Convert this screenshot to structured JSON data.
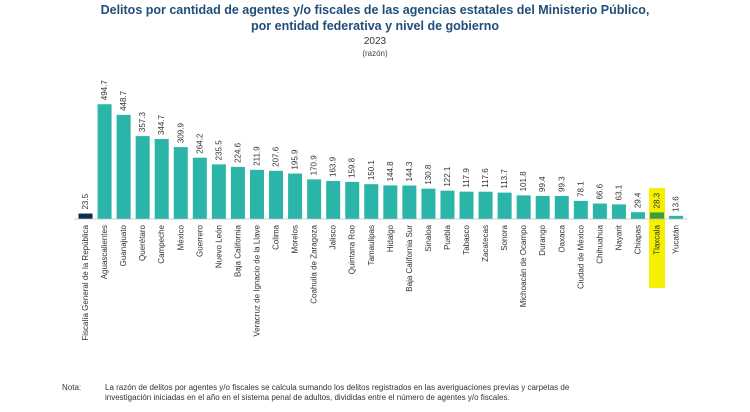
{
  "header": {
    "title_line1": "Delitos por cantidad de agentes y/o fiscales de las agencias estatales del Ministerio Público,",
    "title_line2": "por entidad federativa y nivel de gobierno",
    "year": "2023",
    "unit": "(razón)"
  },
  "colors": {
    "title": "#1f4e79",
    "bar_default": "#2bb5a8",
    "bar_federal": "#0b2d4e",
    "bar_highlight": "#3a9d3a",
    "highlight_band": "#f5ef00"
  },
  "chart_data": {
    "type": "bar",
    "title": "Delitos por cantidad de agentes y/o fiscales de las agencias estatales del Ministerio Público, por entidad federativa y nivel de gobierno",
    "subtitle": "2023 (razón)",
    "xlabel": "",
    "ylabel": "",
    "ylim": [
      0,
      500
    ],
    "grid": false,
    "categories": [
      "Fiscalía General de la República",
      "Aguascalientes",
      "Guanajuato",
      "Querétaro",
      "Campeche",
      "México",
      "Guerrero",
      "Nuevo León",
      "Baja California",
      "Veracruz de Ignacio de la Llave",
      "Colima",
      "Morelos",
      "Coahuila de Zaragoza",
      "Jalisco",
      "Quintana Roo",
      "Tamaulipas",
      "Hidalgo",
      "Baja California Sur",
      "Sinaloa",
      "Puebla",
      "Tabasco",
      "Zacatecas",
      "Sonora",
      "Michoacán de Ocampo",
      "Durango",
      "Oaxaca",
      "Ciudad de México",
      "Chihuahua",
      "Nayarit",
      "Chiapas",
      "Tlaxcala",
      "Yucatán"
    ],
    "values": [
      23.5,
      494.7,
      448.7,
      357.3,
      344.7,
      309.9,
      264.2,
      235.5,
      224.6,
      211.9,
      207.6,
      195.9,
      170.9,
      163.9,
      159.8,
      150.1,
      144.8,
      144.3,
      130.8,
      122.1,
      117.9,
      117.6,
      113.7,
      101.8,
      99.4,
      99.3,
      78.1,
      66.6,
      63.1,
      29.4,
      28.3,
      13.6
    ],
    "value_labels": [
      "23.5",
      "494.7",
      "448.7",
      "357.3",
      "344.7",
      "309.9",
      "264.2",
      "235.5",
      "224.6",
      "211.9",
      "207.6",
      "195.9",
      "170.9",
      "163.9",
      "159.8",
      "150.1",
      "144.8",
      "144.3",
      "130.8",
      "122.1",
      "117.9",
      "117.6",
      "113.7",
      "101.8",
      "99.4",
      "99.3",
      "78.1",
      "66.6",
      "63.1",
      "29.4",
      "28.3",
      "13.6"
    ],
    "federal_category": "Fiscalía General de la República",
    "highlight_category": "Tlaxcala"
  },
  "note": {
    "label": "Nota:",
    "line1": "La razón de delitos por agentes y/o fiscales se calcula sumando los delitos registrados en las averiguaciones previas y carpetas de",
    "line2": "investigación iniciadas en el año en el sistema penal de adultos, divididas entre el número de agentes y/o fiscales."
  }
}
